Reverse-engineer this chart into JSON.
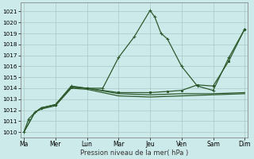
{
  "background_color": "#cdeaea",
  "grid_color": "#a8c8c8",
  "line_color": "#2d5a2d",
  "xlabel": "Pression niveau de la mer( hPa )",
  "ylim": [
    1009.5,
    1021.8
  ],
  "yticks": [
    1010,
    1011,
    1012,
    1013,
    1014,
    1015,
    1016,
    1017,
    1018,
    1019,
    1020,
    1021
  ],
  "x_labels": [
    "Ma",
    "Mer",
    "Lun",
    "Mar",
    "Jeu",
    "Ven",
    "Sam",
    "Dim"
  ],
  "x_positions": [
    0,
    1,
    2,
    3,
    4,
    5,
    6,
    7
  ],
  "xlim": [
    -0.1,
    7.1
  ],
  "lines": [
    {
      "x": [
        0.0,
        0.15,
        0.35,
        0.55,
        1.0,
        1.5,
        2.0,
        2.5,
        3.0,
        3.5,
        4.0,
        4.15,
        4.35,
        4.55,
        5.0,
        5.5,
        6.0,
        6.5,
        7.0
      ],
      "y": [
        1010.0,
        1011.2,
        1011.8,
        1012.2,
        1012.5,
        1014.2,
        1014.0,
        1014.0,
        1016.8,
        1018.7,
        1021.1,
        1020.5,
        1019.0,
        1018.5,
        1016.0,
        1014.2,
        1013.8,
        1016.8,
        1019.4
      ],
      "marker": "+",
      "markersize": 3.5,
      "lw": 0.9
    },
    {
      "x": [
        0.0,
        0.35,
        0.55,
        1.0,
        1.5,
        2.0,
        3.0,
        4.0,
        5.0,
        6.0,
        7.0
      ],
      "y": [
        1010.0,
        1011.8,
        1012.1,
        1012.4,
        1014.0,
        1013.9,
        1013.3,
        1013.2,
        1013.3,
        1013.4,
        1013.5
      ],
      "marker": null,
      "markersize": 0,
      "lw": 0.9
    },
    {
      "x": [
        0.0,
        0.35,
        0.55,
        1.0,
        1.5,
        2.0,
        3.0,
        4.0,
        5.0,
        6.0,
        7.0
      ],
      "y": [
        1010.0,
        1011.8,
        1012.2,
        1012.5,
        1014.1,
        1014.0,
        1013.5,
        1013.4,
        1013.5,
        1013.5,
        1013.6
      ],
      "marker": null,
      "markersize": 0,
      "lw": 0.9
    },
    {
      "x": [
        0.55,
        1.0,
        1.5,
        2.0,
        3.0,
        4.0,
        4.55,
        5.0,
        5.5,
        6.0,
        6.5,
        7.0
      ],
      "y": [
        1012.2,
        1012.5,
        1014.1,
        1014.0,
        1013.6,
        1013.6,
        1013.7,
        1013.8,
        1014.3,
        1014.2,
        1016.5,
        1019.4
      ],
      "marker": "s",
      "markersize": 2.0,
      "lw": 0.9
    }
  ]
}
